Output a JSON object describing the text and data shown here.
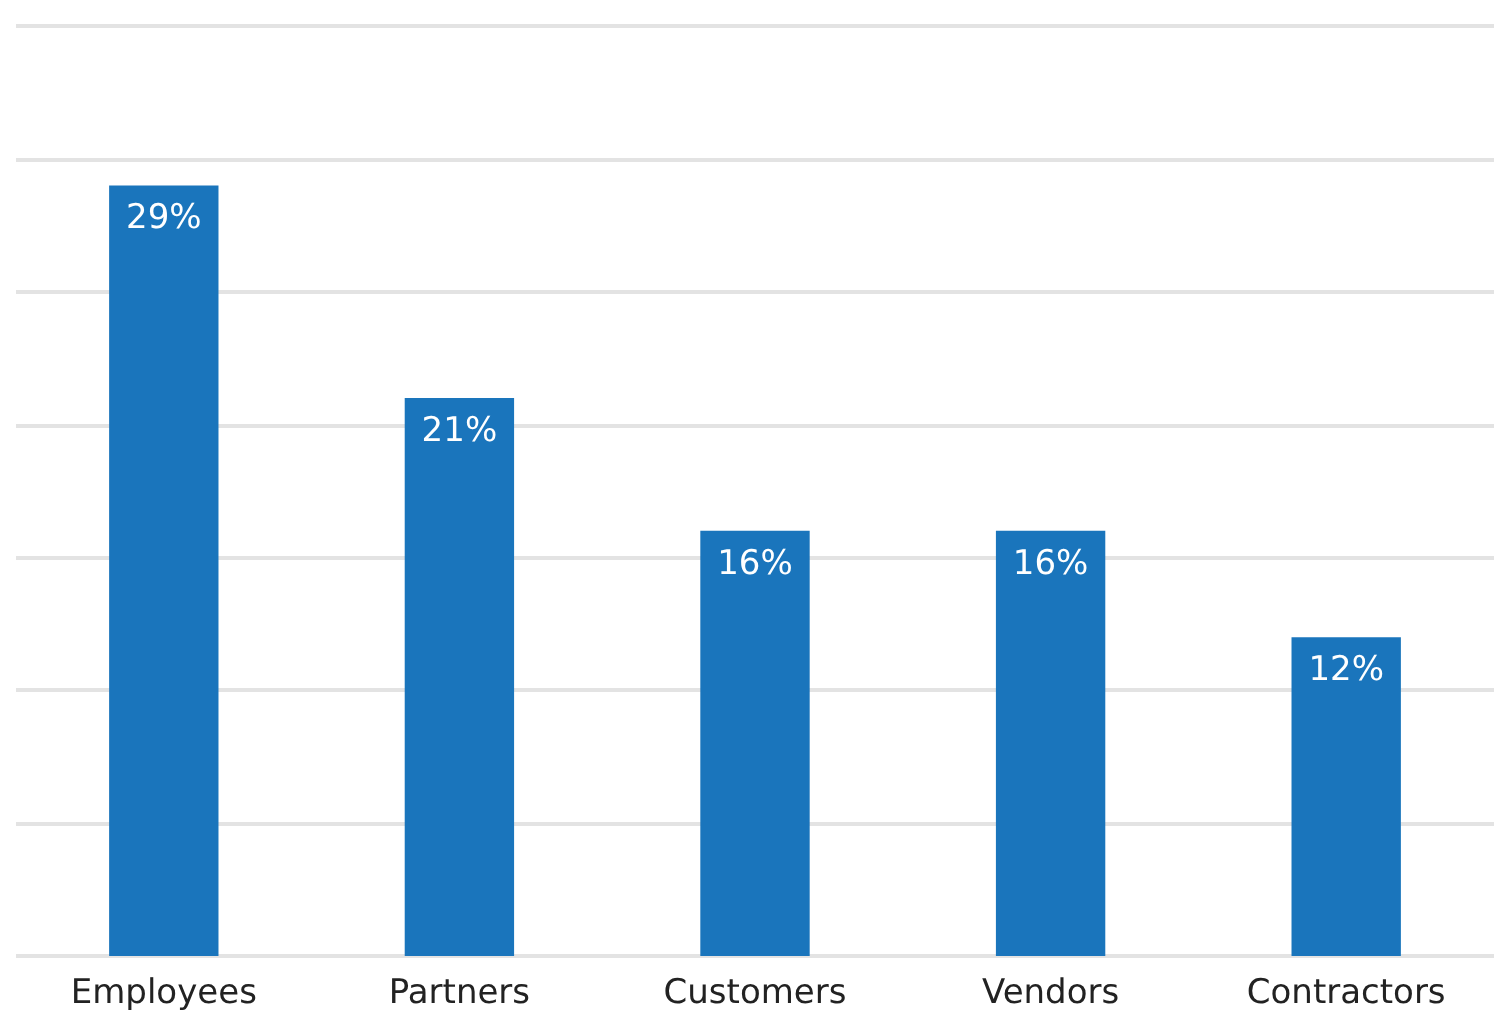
{
  "chart_data": {
    "type": "bar",
    "categories": [
      "Employees",
      "Partners",
      "Customers",
      "Vendors",
      "Contractors"
    ],
    "values": [
      29,
      21,
      16,
      16,
      12
    ],
    "value_labels": [
      "29%",
      "21%",
      "16%",
      "16%",
      "12%"
    ],
    "color": "#1a75bc",
    "ylim": [
      0,
      35
    ],
    "yticks": [
      0,
      5,
      10,
      15,
      20,
      25,
      30,
      35
    ],
    "tick_labels": "x",
    "grid": "y"
  }
}
